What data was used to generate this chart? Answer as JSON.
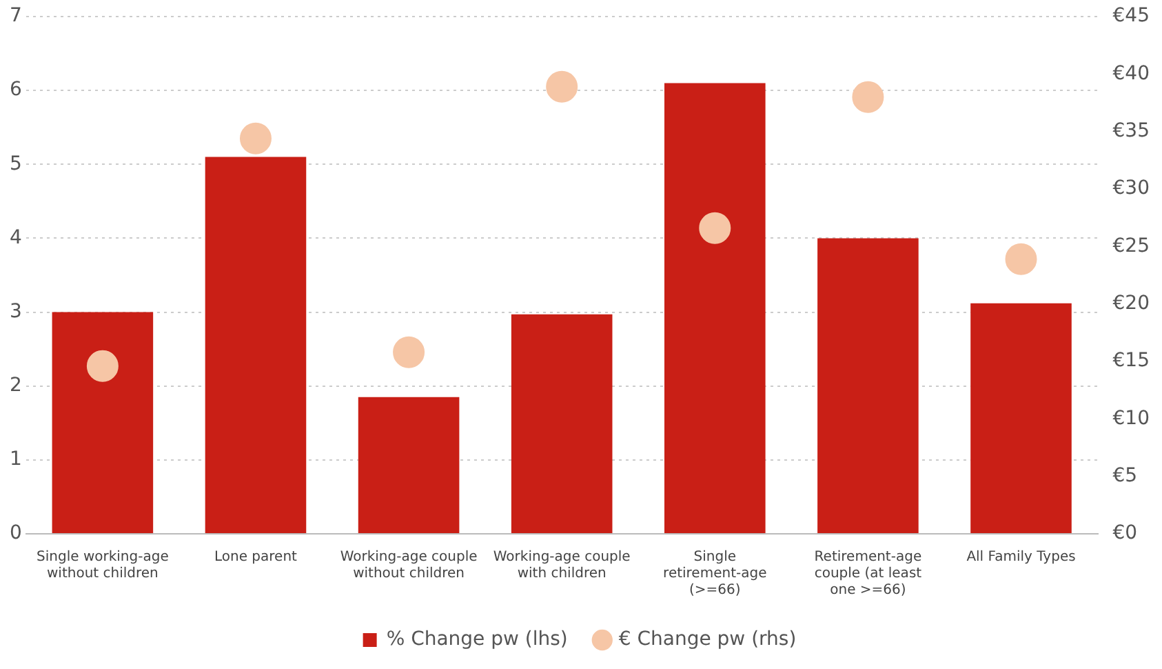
{
  "chart_data": {
    "type": "bar",
    "categories": [
      "Single working-age without children",
      "Lone parent",
      "Working-age couple without children",
      "Working-age couple with children",
      "Single retirement-age (>=66)",
      "Retirement-age couple (at least one >=66)",
      "All Family Types"
    ],
    "series": [
      {
        "name": "% Change pw (lhs)",
        "color": "#c91f16",
        "values": [
          3.0,
          5.1,
          1.85,
          2.97,
          6.1,
          4.0,
          3.12
        ]
      },
      {
        "name": "€ Change pw (rhs)",
        "type": "scatter",
        "axis": "y2",
        "color": "#f6c6a6",
        "values": [
          14.6,
          34.4,
          15.8,
          38.9,
          26.6,
          38.0,
          23.9
        ]
      }
    ],
    "ylim": [
      0,
      7
    ],
    "yticks": [
      0,
      1,
      2,
      3,
      4,
      5,
      6,
      7
    ],
    "y2lim": [
      0,
      45
    ],
    "y2ticks": [
      {
        "value": 0,
        "label": "€0"
      },
      {
        "value": 5,
        "label": "€5"
      },
      {
        "value": 10,
        "label": "€10"
      },
      {
        "value": 15,
        "label": "€15"
      },
      {
        "value": 20,
        "label": "€20"
      },
      {
        "value": 25,
        "label": "€25"
      },
      {
        "value": 30,
        "label": "€30"
      },
      {
        "value": 35,
        "label": "€35"
      },
      {
        "value": 40,
        "label": "€40"
      },
      {
        "value": 45,
        "label": "€45"
      }
    ],
    "grid": "y",
    "legend": "bottom",
    "marker": "circle"
  }
}
